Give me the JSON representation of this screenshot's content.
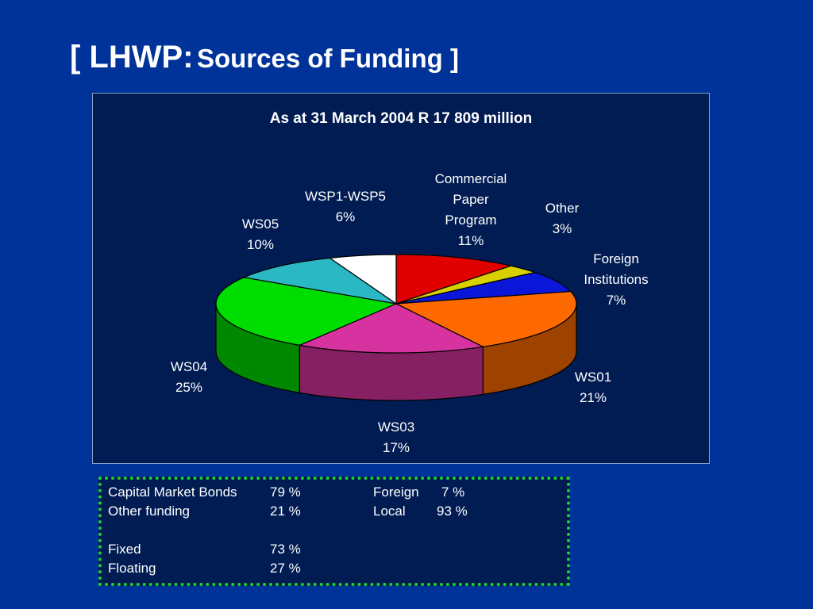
{
  "slide": {
    "title_prefix": "[ LHWP:",
    "title_suffix": "Sources of Funding ]"
  },
  "chart_data": {
    "type": "pie",
    "title": "As at 31 March 2004 R 17 809 million",
    "slices": [
      {
        "label": [
          "Commercial",
          "Paper",
          "Program"
        ],
        "value": 11,
        "display": "11%",
        "color": "#e00000"
      },
      {
        "label": [
          "Other"
        ],
        "value": 3,
        "display": "3%",
        "color": "#d8d000"
      },
      {
        "label": [
          "Foreign",
          "Institutions"
        ],
        "value": 7,
        "display": "7%",
        "color": "#0a16d8"
      },
      {
        "label": [
          "WS01"
        ],
        "value": 21,
        "display": "21%",
        "color": "#ff6a00"
      },
      {
        "label": [
          "WS03"
        ],
        "value": 17,
        "display": "17%",
        "color": "#d633a0"
      },
      {
        "label": [
          "WS04"
        ],
        "value": 25,
        "display": "25%",
        "color": "#00dd00"
      },
      {
        "label": [
          "WS05"
        ],
        "value": 10,
        "display": "10%",
        "color": "#2ab8c4"
      },
      {
        "label": [
          "WSP1-WSP5"
        ],
        "value": 6,
        "display": "6%",
        "color": "#ffffff"
      }
    ]
  },
  "summary": {
    "rows": [
      {
        "label": "Capital Market Bonds",
        "value": "79 %",
        "label2": "Foreign",
        "value2": "7 %"
      },
      {
        "label": "Other funding",
        "value": "21 %",
        "label2": "Local",
        "value2": "93 %"
      },
      {
        "label": "Fixed",
        "value": "73 %",
        "label2": "",
        "value2": ""
      },
      {
        "label": "Floating",
        "value": "27 %",
        "label2": "",
        "value2": ""
      }
    ]
  }
}
